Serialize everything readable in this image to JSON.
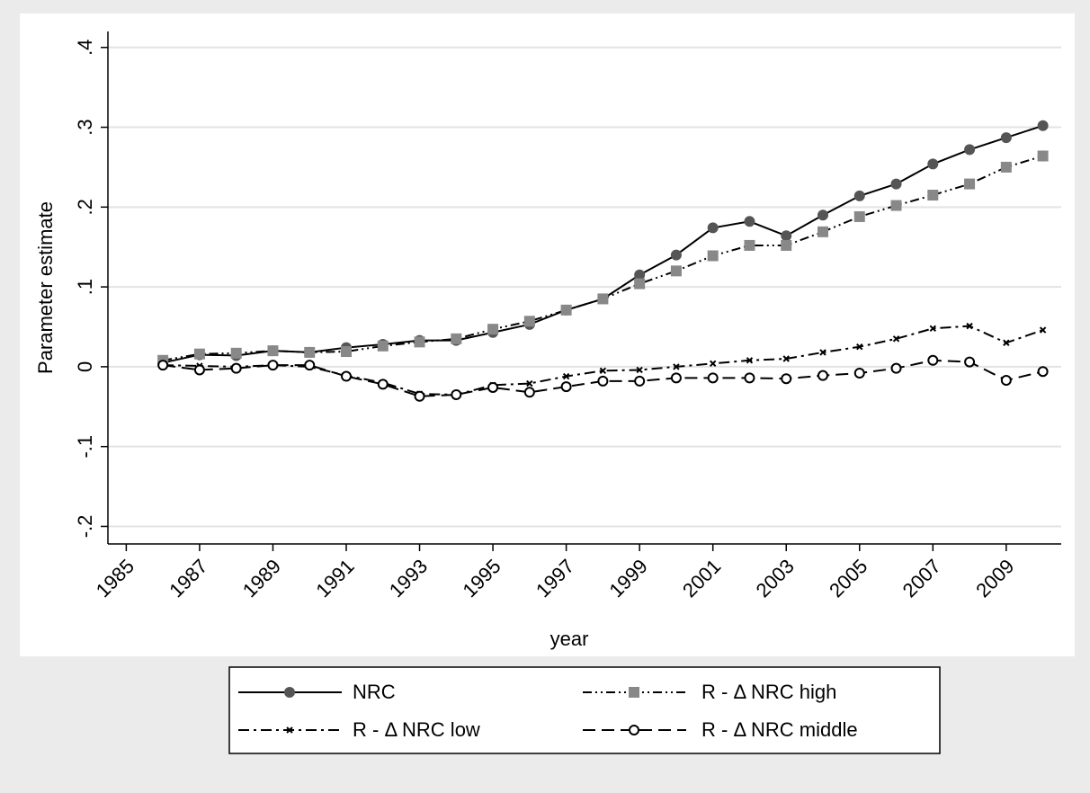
{
  "chart_data": {
    "type": "line",
    "x_label": "year",
    "y_label": "Parameter estimate",
    "x": [
      1986,
      1987,
      1988,
      1989,
      1990,
      1991,
      1992,
      1993,
      1994,
      1995,
      1996,
      1997,
      1998,
      1999,
      2000,
      2001,
      2002,
      2003,
      2004,
      2005,
      2006,
      2007,
      2008,
      2009,
      2010
    ],
    "series": [
      {
        "name": "NRC",
        "color": "#555555",
        "marker": "circle",
        "dash": "solid",
        "values": [
          0.005,
          0.015,
          0.014,
          0.02,
          0.018,
          0.024,
          0.028,
          0.033,
          0.033,
          0.043,
          0.053,
          0.071,
          0.085,
          0.115,
          0.14,
          0.174,
          0.182,
          0.164,
          0.19,
          0.214,
          0.229,
          0.254,
          0.272,
          0.287,
          0.302
        ]
      },
      {
        "name": "R - Δ NRC high",
        "color": "#888888",
        "marker": "square",
        "dash": "dash-dot-dot",
        "values": [
          0.008,
          0.016,
          0.017,
          0.02,
          0.018,
          0.019,
          0.026,
          0.031,
          0.035,
          0.047,
          0.057,
          0.071,
          0.085,
          0.104,
          0.12,
          0.139,
          0.152,
          0.152,
          0.169,
          0.188,
          0.202,
          0.215,
          0.229,
          0.25,
          0.264
        ]
      },
      {
        "name": "R - Δ NRC low",
        "color": "#000000",
        "marker": "x",
        "dash": "dash-dot",
        "values": [
          0.002,
          0.001,
          0,
          0.002,
          0,
          -0.011,
          -0.02,
          -0.034,
          -0.035,
          -0.023,
          -0.021,
          -0.012,
          -0.005,
          -0.004,
          0,
          0.004,
          0.008,
          0.01,
          0.018,
          0.025,
          0.035,
          0.048,
          0.051,
          0.03,
          0.046
        ]
      },
      {
        "name": "R - Δ NRC middle",
        "color": "#000000",
        "marker": "hollow-circle",
        "dash": "dash",
        "values": [
          0.002,
          -0.004,
          -0.002,
          0.002,
          0.002,
          -0.012,
          -0.022,
          -0.037,
          -0.035,
          -0.026,
          -0.032,
          -0.025,
          -0.018,
          -0.018,
          -0.014,
          -0.014,
          -0.014,
          -0.015,
          -0.011,
          -0.008,
          -0.002,
          0.008,
          0.006,
          -0.017,
          -0.006
        ]
      }
    ],
    "xlim": [
      1984.5,
      2010.5
    ],
    "xticks": [
      1985,
      1987,
      1989,
      1991,
      1993,
      1995,
      1997,
      1999,
      2001,
      2003,
      2005,
      2007,
      2009
    ],
    "ylim": [
      -0.222,
      0.42
    ],
    "yticks": [
      {
        "value": -0.2,
        "label": "-.2"
      },
      {
        "value": -0.1,
        "label": "-.1"
      },
      0,
      {
        "value": 0.1,
        "label": ".1"
      },
      {
        "value": 0.2,
        "label": ".2"
      },
      {
        "value": 0.3,
        "label": ".3"
      },
      {
        "value": 0.4,
        "label": ".4"
      }
    ],
    "grid": true,
    "legend": "bottom"
  }
}
